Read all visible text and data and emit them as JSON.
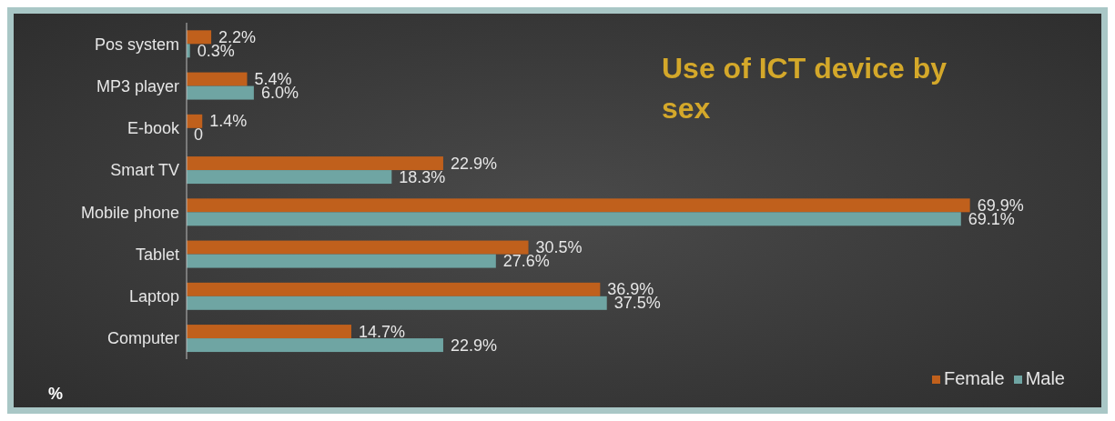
{
  "chart_data": {
    "type": "bar",
    "orientation": "horizontal",
    "title": "Use of ICT device by sex",
    "categories": [
      "Pos system",
      "MP3 player",
      "E-book",
      "Smart TV",
      "Mobile phone",
      "Tablet",
      "Laptop",
      "Computer"
    ],
    "series": [
      {
        "name": "Female",
        "color": "#c0601c",
        "values": [
          2.2,
          5.4,
          1.4,
          22.9,
          69.9,
          30.5,
          36.9,
          14.7
        ],
        "value_labels": [
          "2.2%",
          "5.4%",
          "1.4%",
          "22.9%",
          "69.9%",
          "30.5%",
          "36.9%",
          "14.7%"
        ]
      },
      {
        "name": "Male",
        "color": "#6fa5a3",
        "values": [
          0.3,
          6.0,
          0,
          18.3,
          69.1,
          27.6,
          37.5,
          22.9
        ],
        "value_labels": [
          "0.3%",
          "6.0%",
          "0",
          "18.3%",
          "69.1%",
          "27.6%",
          "37.5%",
          "22.9%"
        ]
      }
    ],
    "tick_labels": "y",
    "legend": "bottom right",
    "annotations": [
      "%"
    ]
  }
}
